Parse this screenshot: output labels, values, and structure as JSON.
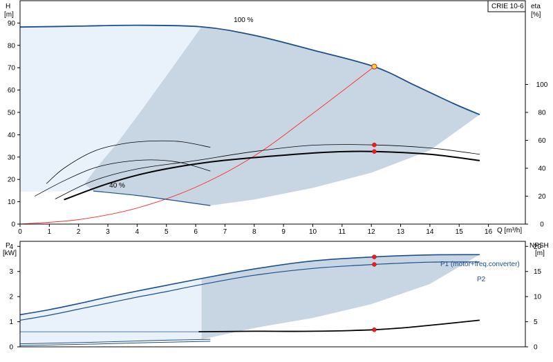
{
  "colors": {
    "envelope_light": "#e9f2fb",
    "envelope_dark": "#c8d6e4",
    "curve_blue": "#1b4f8c",
    "curve_black": "#000000",
    "system_curve": "#ff2a2a",
    "point_red": "#ee1c1c",
    "point_yellow": "#ffd23c"
  },
  "chart_data": [
    {
      "type": "line",
      "id": "pump-performance",
      "legend_box": "CRIE 10-6",
      "left_axis": {
        "label_line1": "H",
        "label_line2": "[m]",
        "ylim": [
          0,
          100
        ],
        "ticks": [
          0,
          10,
          20,
          30,
          40,
          50,
          60,
          70,
          80,
          90
        ]
      },
      "right_axis": {
        "label_line1": "eta",
        "label_line2": "[%]",
        "ylim": [
          0,
          160
        ],
        "ticks": [
          0,
          20,
          40,
          60,
          80,
          100
        ]
      },
      "x_axis": {
        "label": "Q [m³/h]",
        "xlim": [
          0,
          17.3
        ],
        "ticks": [
          0,
          1,
          2,
          3,
          4,
          5,
          6,
          7,
          8,
          9,
          10,
          11,
          12,
          13,
          14,
          15,
          16
        ]
      },
      "annotations": [
        {
          "text": "100 %",
          "x": 7.3,
          "y": 90.5
        },
        {
          "text": "40 %",
          "x": 3.05,
          "y": 16.3
        }
      ],
      "envelope": {
        "max_curve": [
          [
            0,
            88.2
          ],
          [
            2,
            88.6
          ],
          [
            4,
            89.0
          ],
          [
            6.2,
            88.3
          ],
          [
            8,
            84.5
          ],
          [
            10,
            77.9
          ],
          [
            12.1,
            70.5
          ],
          [
            13.5,
            62
          ],
          [
            14.8,
            54
          ],
          [
            15.7,
            49
          ]
        ],
        "min_curve": [
          [
            0,
            14.5
          ],
          [
            2.5,
            14.8
          ],
          [
            4,
            12.8
          ],
          [
            5.2,
            10.7
          ],
          [
            6.5,
            8.3
          ]
        ],
        "light_region_right_x": 6.25,
        "dark_lower_edge": [
          [
            6.5,
            8.3
          ],
          [
            8,
            11
          ],
          [
            10,
            16.2
          ],
          [
            12,
            23
          ],
          [
            14,
            33
          ],
          [
            15.7,
            49
          ]
        ],
        "dark_left_edge": [
          [
            6.2,
            88.3
          ],
          [
            5.2,
            70
          ],
          [
            4.1,
            50
          ],
          [
            3.3,
            36
          ],
          [
            2.6,
            25
          ],
          [
            2.2,
            18
          ],
          [
            2.5,
            14.8
          ]
        ]
      },
      "system_curve": [
        [
          0,
          0
        ],
        [
          2,
          2
        ],
        [
          4,
          7.2
        ],
        [
          6,
          16.5
        ],
        [
          8,
          30.5
        ],
        [
          10,
          49.5
        ],
        [
          12.1,
          70.5
        ]
      ],
      "head_lines": [
        {
          "role": "max",
          "points": [
            [
              0,
              88.2
            ],
            [
              2,
              88.6
            ],
            [
              4,
              89.0
            ],
            [
              6.2,
              88.3
            ],
            [
              8,
              84.5
            ],
            [
              10,
              77.9
            ],
            [
              12.1,
              70.5
            ],
            [
              13.5,
              62
            ],
            [
              14.8,
              54
            ],
            [
              15.7,
              49
            ]
          ]
        },
        {
          "role": "min",
          "points": [
            [
              2.5,
              14.8
            ],
            [
              4,
              12.8
            ],
            [
              5.2,
              10.7
            ],
            [
              6.5,
              8.3
            ]
          ]
        }
      ],
      "efficiency_lines_thin": [
        {
          "points": [
            [
              0.9,
              29
            ],
            [
              1.5,
              40
            ],
            [
              2.5,
              52
            ],
            [
              3.5,
              57.5
            ],
            [
              4.5,
              59.5
            ],
            [
              5.5,
              59
            ],
            [
              6.5,
              55
            ]
          ]
        },
        {
          "points": [
            [
              0.5,
              20
            ],
            [
              1.5,
              31
            ],
            [
              2.5,
              40
            ],
            [
              3.5,
              44.5
            ],
            [
              4.5,
              46
            ],
            [
              5.5,
              44
            ],
            [
              6.5,
              38
            ]
          ]
        },
        {
          "points": [
            [
              1.2,
              18
            ],
            [
              2.5,
              31
            ],
            [
              4,
              39.5
            ],
            [
              6,
              45.5
            ],
            [
              8,
              52
            ],
            [
              10,
              56.5
            ],
            [
              12.1,
              56.7
            ],
            [
              14,
              54.5
            ],
            [
              15.7,
              50
            ]
          ]
        }
      ],
      "efficiency_line_bold": {
        "points": [
          [
            1.5,
            17.5
          ],
          [
            3,
            29
          ],
          [
            4.5,
            37.5
          ],
          [
            6.5,
            44.5
          ],
          [
            8.5,
            48.5
          ],
          [
            10.5,
            51.5
          ],
          [
            12.1,
            52
          ],
          [
            14,
            50
          ],
          [
            15.7,
            45.5
          ]
        ]
      },
      "head_point": {
        "x": 12.1,
        "y": 70.5
      },
      "efficiency_points": [
        {
          "x": 12.1,
          "eta": 56.7
        },
        {
          "x": 12.1,
          "eta": 52
        }
      ]
    },
    {
      "type": "line",
      "id": "power-npsh",
      "left_axis": {
        "label_line1": "P",
        "label_line2": "[kW]",
        "ylim": [
          0,
          4.2
        ],
        "ticks": [
          0,
          1,
          2,
          3,
          4
        ]
      },
      "right_axis": {
        "label_line1": "NPSH",
        "label_line2": "[m]",
        "ylim": [
          0,
          21
        ],
        "ticks": [
          0,
          5,
          10,
          15,
          20
        ]
      },
      "x_axis": {
        "xlim": [
          0,
          17.3
        ],
        "ticks": []
      },
      "series": [
        {
          "name": "P1 (motor+freq.converter)",
          "points": [
            [
              0,
              1.28
            ],
            [
              1,
              1.48
            ],
            [
              2,
              1.72
            ],
            [
              3,
              1.98
            ],
            [
              4,
              2.22
            ],
            [
              5,
              2.45
            ],
            [
              6.2,
              2.72
            ],
            [
              8,
              3.1
            ],
            [
              10,
              3.42
            ],
            [
              12.1,
              3.58
            ],
            [
              14,
              3.66
            ],
            [
              15.7,
              3.67
            ]
          ]
        },
        {
          "name": "P2",
          "points": [
            [
              0,
              1.06
            ],
            [
              1,
              1.26
            ],
            [
              2,
              1.5
            ],
            [
              3,
              1.74
            ],
            [
              4,
              1.98
            ],
            [
              5,
              2.2
            ],
            [
              6.2,
              2.48
            ],
            [
              8,
              2.85
            ],
            [
              10,
              3.12
            ],
            [
              12.1,
              3.28
            ],
            [
              14,
              3.37
            ],
            [
              15.7,
              3.38
            ]
          ]
        }
      ],
      "low_power_lines": [
        {
          "points": [
            [
              0,
              0.12
            ],
            [
              2.5,
              0.18
            ],
            [
              4.5,
              0.25
            ],
            [
              6.5,
              0.3
            ]
          ]
        },
        {
          "points": [
            [
              0,
              0.05
            ],
            [
              2.5,
              0.11
            ],
            [
              4.5,
              0.17
            ],
            [
              6.5,
              0.22
            ]
          ]
        }
      ],
      "npsh_line": {
        "points": [
          [
            6.1,
            3.0
          ],
          [
            8,
            3.1
          ],
          [
            10,
            3.1
          ],
          [
            12.1,
            3.4
          ],
          [
            13.5,
            4.0
          ],
          [
            15.7,
            5.3
          ]
        ]
      },
      "npsh_guide_line": {
        "points": [
          [
            0,
            3.0
          ],
          [
            6.1,
            3.0
          ]
        ]
      },
      "envelope": {
        "light_region": [
          [
            0,
            1.28
          ],
          [
            6.2,
            2.72
          ],
          [
            6.2,
            0.3
          ],
          [
            0,
            0.12
          ]
        ],
        "dark_region": [
          [
            6.2,
            2.72
          ],
          [
            8,
            3.1
          ],
          [
            10,
            3.42
          ],
          [
            12.1,
            3.58
          ],
          [
            14,
            3.66
          ],
          [
            15.7,
            3.67
          ],
          [
            14,
            2.5
          ],
          [
            12,
            1.7
          ],
          [
            10,
            1.15
          ],
          [
            8,
            0.75
          ],
          [
            6.2,
            0.3
          ]
        ]
      },
      "p_points": [
        {
          "x": 12.1,
          "p": 3.58
        },
        {
          "x": 12.1,
          "p": 3.28
        }
      ],
      "npsh_point": {
        "x": 12.1,
        "npsh": 3.4
      }
    }
  ]
}
